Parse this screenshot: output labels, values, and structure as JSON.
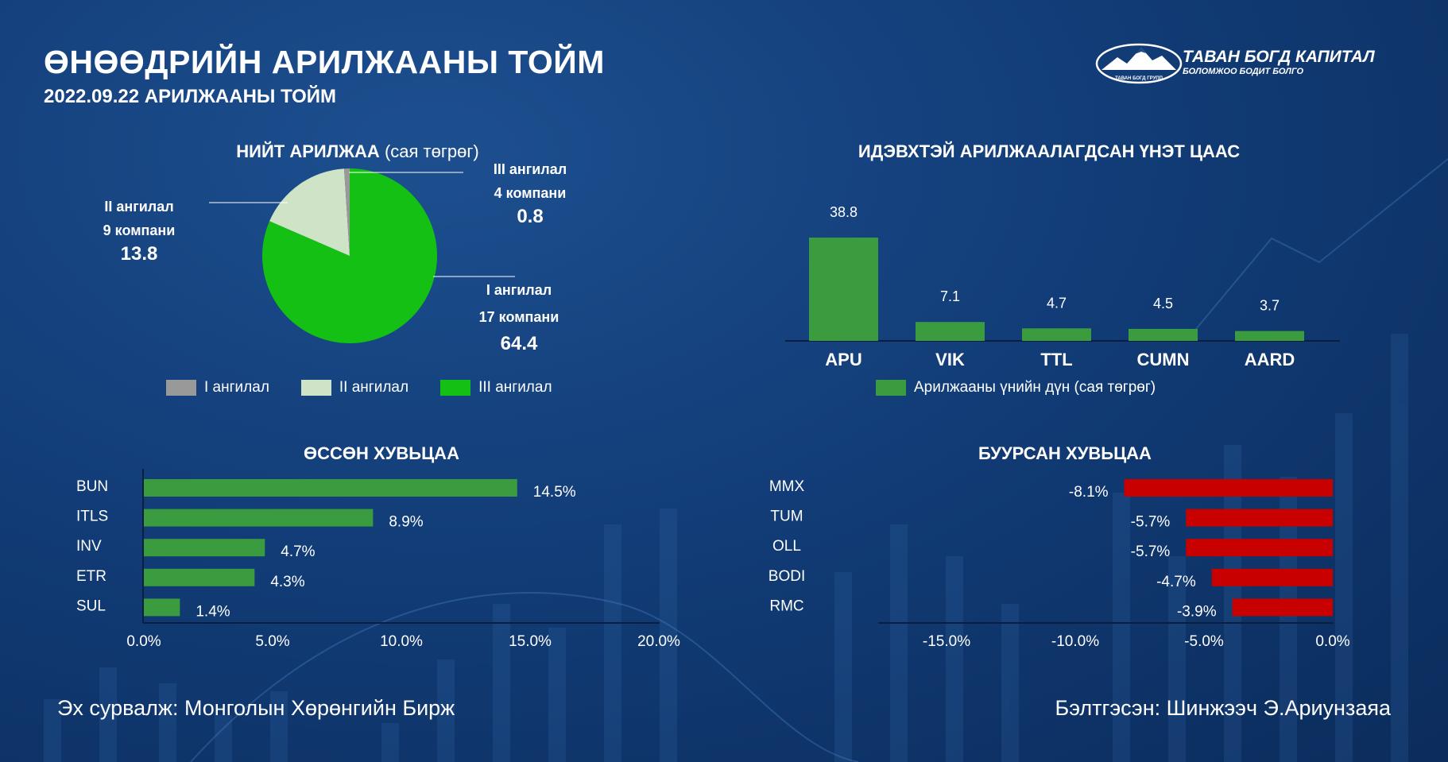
{
  "header": {
    "title": "ӨНӨӨДРИЙН АРИЛЖААНЫ ТОЙМ",
    "subtitle": "2022.09.22 АРИЛЖААНЫ ТОЙМ"
  },
  "logo": {
    "name": "ТАВАН БОГД КАПИТАЛ",
    "slogan": "БОЛОМЖОО БОДИТ БОЛГО",
    "small": "ТАВАН БОГД ГРУПП"
  },
  "footer": {
    "source": "Эх сурвалж: Монголын Хөрөнгийн Бирж",
    "author": "Бэлтгэсэн: Шинжээч Э.Ариунзаяа"
  },
  "colors": {
    "green_bar": "#3a9c3e",
    "red_bar": "#c80000",
    "pie_class1": "#14c014",
    "pie_class2": "#cfe4c6",
    "pie_class3": "#999999"
  },
  "chart_data": [
    {
      "type": "pie",
      "title": "НИЙТ АРИЛЖАА",
      "title_unit": "(сая төгрөг)",
      "series": [
        {
          "name": "I ангилал",
          "companies": "17 компани",
          "value": 64.4,
          "label": "I ангилал",
          "value_label": "64.4"
        },
        {
          "name": "II ангилал",
          "companies": "9 компани",
          "value": 13.8,
          "label": "II ангилал",
          "value_label": "13.8"
        },
        {
          "name": "III ангилал",
          "companies": "4 компани",
          "value": 0.8,
          "label": "III ангилал",
          "value_label": "0.8"
        }
      ],
      "legend": [
        "I ангилал",
        "II ангилал",
        "III ангилал"
      ],
      "legend_colors": [
        "#999999",
        "#cfe4c6",
        "#14c014"
      ],
      "legend_position": "bottom"
    },
    {
      "type": "bar",
      "title": "ИДЭВХТЭЙ АРИЛЖААЛАГДСАН ҮНЭТ ЦААС",
      "categories": [
        "APU",
        "VIK",
        "TTL",
        "CUMN",
        "AARD"
      ],
      "values": [
        38.8,
        7.1,
        4.7,
        4.5,
        3.7
      ],
      "series_name": "Арилжааны үнийн дүн (сая төгрөг)",
      "legend_position": "bottom"
    },
    {
      "type": "bar",
      "orientation": "horizontal",
      "title": "ӨССӨН ХУВЬЦАА",
      "categories": [
        "BUN",
        "ITLS",
        "INV",
        "ETR",
        "SUL"
      ],
      "values": [
        14.5,
        8.9,
        4.7,
        4.3,
        1.4
      ],
      "value_labels": [
        "14.5%",
        "8.9%",
        "4.7%",
        "4.3%",
        "1.4%"
      ],
      "xlim": [
        0,
        20
      ],
      "ticks": [
        "0.0%",
        "5.0%",
        "10.0%",
        "15.0%",
        "20.0%"
      ]
    },
    {
      "type": "bar",
      "orientation": "horizontal",
      "title": "БУУРСАН ХУВЬЦАА",
      "categories": [
        "MMX",
        "TUM",
        "OLL",
        "BODI",
        "RMC"
      ],
      "values": [
        -8.1,
        -5.7,
        -5.7,
        -4.7,
        -3.9
      ],
      "value_labels": [
        "-8.1%",
        "-5.7%",
        "-5.7%",
        "-4.7%",
        "-3.9%"
      ],
      "xlim": [
        -18,
        0
      ],
      "ticks": [
        "-15.0%",
        "-10.0%",
        "-5.0%",
        "0.0%"
      ],
      "tick_values": [
        -15,
        -10,
        -5,
        0
      ]
    }
  ]
}
